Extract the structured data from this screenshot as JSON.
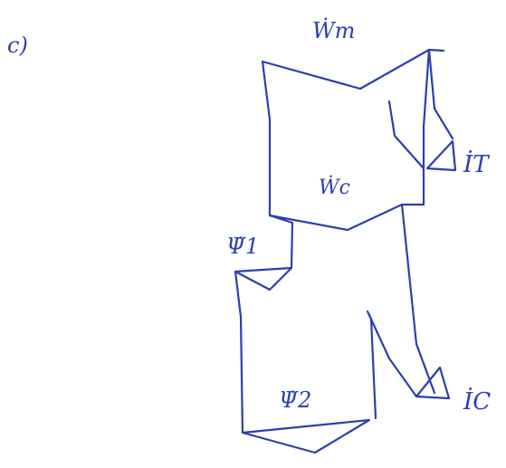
{
  "part_label": "c)",
  "labels": {
    "w_m": "Ẇm",
    "w_c": "Ẇc",
    "psi_1": "Ψ̇1",
    "psi_2": "Ψ̇2",
    "i_t": "İT",
    "i_c": "İC"
  },
  "colors": {
    "ink": "#2a3fb0",
    "background": "#ffffff"
  }
}
